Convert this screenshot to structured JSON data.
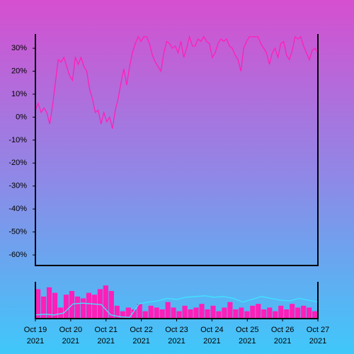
{
  "chart_data": [
    {
      "type": "line",
      "xlim": [
        "2021-10-19",
        "2021-10-27"
      ],
      "ylim": [
        -64.6,
        36.2
      ],
      "yticks": [
        {
          "value": 30,
          "label": "30%"
        },
        {
          "value": 20,
          "label": "20%"
        },
        {
          "value": 10,
          "label": "10%"
        },
        {
          "value": 0,
          "label": "0%"
        },
        {
          "value": -10,
          "label": "-10%"
        },
        {
          "value": -20,
          "label": "-20%"
        },
        {
          "value": -30,
          "label": "-30%"
        },
        {
          "value": -40,
          "label": "-40%"
        },
        {
          "value": -50,
          "label": "-50%"
        },
        {
          "value": -60,
          "label": "-60%"
        }
      ],
      "series": [
        {
          "color": "#ff1fb8",
          "values": [
            3,
            6,
            2,
            4,
            2,
            -3,
            5,
            15,
            25,
            24,
            26,
            22,
            18,
            16,
            26,
            23,
            26,
            22,
            20,
            12,
            8,
            2,
            3,
            -3,
            2,
            -2,
            0,
            -5,
            3,
            8,
            15,
            21,
            14,
            22,
            28,
            32,
            35,
            33,
            35,
            35,
            32,
            27,
            24,
            22,
            20,
            28,
            33,
            32,
            30,
            31,
            28,
            33,
            26,
            30,
            35,
            31,
            31,
            34,
            33,
            35,
            33,
            32,
            26,
            28,
            32,
            34,
            33,
            34,
            31,
            30,
            27,
            25,
            20,
            30,
            33,
            35,
            35,
            35,
            35,
            32,
            30,
            28,
            23,
            28,
            30,
            26,
            32,
            33,
            27,
            25,
            29,
            35,
            34,
            35,
            31,
            28,
            25,
            29,
            30,
            28
          ]
        }
      ]
    },
    {
      "type": "bar",
      "xlim": [
        "2021-10-19",
        "2021-10-27"
      ],
      "ylim": [
        0,
        100
      ],
      "xticks": [
        {
          "value": "2021-10-19",
          "label": [
            "Oct 19",
            "2021"
          ]
        },
        {
          "value": "2021-10-20",
          "label": [
            "Oct 20",
            "2021"
          ]
        },
        {
          "value": "2021-10-21",
          "label": [
            "Oct 21",
            "2021"
          ]
        },
        {
          "value": "2021-10-22",
          "label": [
            "Oct 22",
            "2021"
          ]
        },
        {
          "value": "2021-10-23",
          "label": [
            "Oct 23",
            "2021"
          ]
        },
        {
          "value": "2021-10-24",
          "label": [
            "Oct 24",
            "2021"
          ]
        },
        {
          "value": "2021-10-25",
          "label": [
            "Oct 25",
            "2021"
          ]
        },
        {
          "value": "2021-10-26",
          "label": [
            "Oct 26",
            "2021"
          ]
        },
        {
          "value": "2021-10-27",
          "label": [
            "Oct 27",
            "2021"
          ]
        }
      ],
      "series": [
        {
          "kind": "bar",
          "color": "#ff1fb8",
          "values": [
            80,
            60,
            85,
            70,
            30,
            65,
            75,
            60,
            55,
            70,
            65,
            80,
            90,
            75,
            35,
            20,
            30,
            25,
            40,
            20,
            35,
            30,
            25,
            45,
            30,
            20,
            35,
            25,
            30,
            40,
            25,
            35,
            20,
            30,
            45,
            25,
            30,
            20,
            35,
            40,
            25,
            30,
            20,
            35,
            25,
            40,
            30,
            35,
            30,
            20
          ]
        },
        {
          "kind": "line",
          "color": "#40e4ff",
          "values": [
            10,
            12,
            10,
            15,
            40,
            42,
            40,
            38,
            10,
            5,
            3,
            40,
            45,
            48,
            55,
            52,
            58,
            60,
            62,
            58,
            60,
            55,
            45,
            52,
            60,
            55,
            50,
            48,
            55,
            50,
            45
          ]
        }
      ]
    }
  ]
}
